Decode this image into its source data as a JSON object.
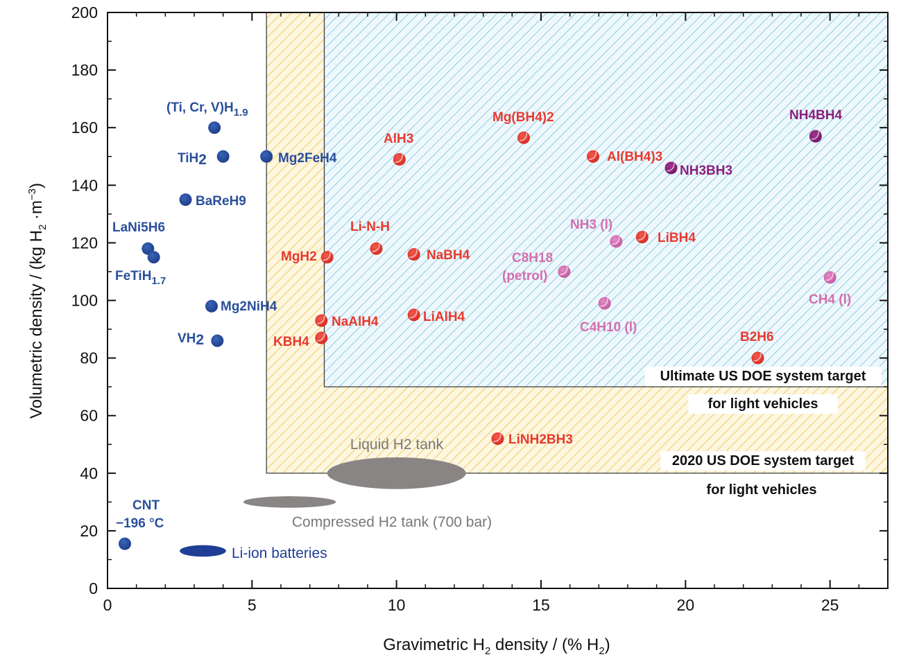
{
  "chart_data": {
    "type": "scatter",
    "xlabel": "Gravimetric H2 density / (% H2)",
    "ylabel": "Volumetric density / (kg H2·m−3)",
    "xlim": [
      0,
      27
    ],
    "ylim": [
      0,
      200
    ],
    "xticks": [
      "0",
      "5",
      "10",
      "15",
      "20",
      "25"
    ],
    "yticks": [
      "0",
      "20",
      "40",
      "60",
      "80",
      "100",
      "120",
      "140",
      "160",
      "180",
      "200"
    ],
    "colors": {
      "metal_hydride": "#2a4f9b",
      "complex_hydride": "#e83a2f",
      "hydrocarbon": "#d36fb0",
      "ammonia_borane": "#8b1f7e",
      "ellipse_gray": "#8a8585",
      "ellipse_blue": "#1f3f96",
      "hatch_blue": "#8ccbe4",
      "hatch_yellow": "#f3cf6a"
    },
    "regions": [
      {
        "label_line1": "2020 US DOE system target",
        "label_line2": "for light vehicles",
        "x_min": 5.5,
        "y_min": 40
      },
      {
        "label_line1": "Ultimate US DOE system target",
        "label_line2": "for light vehicles",
        "x_min": 7.5,
        "y_min": 70
      }
    ],
    "points": [
      {
        "label": "(Ti, Cr, V)H",
        "sub": "1.9",
        "x": 3.7,
        "y": 160,
        "group": "metal_hydride"
      },
      {
        "label": "TiH",
        "sub": "2",
        "x": 4.0,
        "y": 150,
        "group": "metal_hydride"
      },
      {
        "label": "Mg2FeH4",
        "x": 5.5,
        "y": 150,
        "group": "metal_hydride"
      },
      {
        "label": "BaReH9",
        "x": 2.7,
        "y": 135,
        "group": "metal_hydride"
      },
      {
        "label": "LaNi5H6",
        "x": 1.4,
        "y": 118,
        "group": "metal_hydride"
      },
      {
        "label": "FeTiH",
        "sub": "1.7",
        "x": 1.6,
        "y": 115,
        "group": "metal_hydride"
      },
      {
        "label": "Mg2NiH4",
        "x": 3.6,
        "y": 98,
        "group": "metal_hydride"
      },
      {
        "label": "VH",
        "sub": "2",
        "x": 3.8,
        "y": 86,
        "group": "metal_hydride"
      },
      {
        "label": "CNT",
        "label2": "−196 °C",
        "x": 0.6,
        "y": 15.5,
        "group": "metal_hydride"
      },
      {
        "label": "Mg(BH4)2",
        "x": 14.4,
        "y": 156.5,
        "group": "complex_hydride"
      },
      {
        "label": "AlH3",
        "x": 10.1,
        "y": 149,
        "group": "complex_hydride"
      },
      {
        "label": "Al(BH4)3",
        "x": 16.8,
        "y": 150,
        "group": "complex_hydride"
      },
      {
        "label": "Li-N-H",
        "x": 9.3,
        "y": 118,
        "group": "complex_hydride"
      },
      {
        "label": "MgH2",
        "x": 7.6,
        "y": 115,
        "group": "complex_hydride"
      },
      {
        "label": "NaBH4",
        "x": 10.6,
        "y": 116,
        "group": "complex_hydride"
      },
      {
        "label": "LiBH4",
        "x": 18.5,
        "y": 122,
        "group": "complex_hydride"
      },
      {
        "label": "NaAlH4",
        "x": 7.4,
        "y": 93,
        "group": "complex_hydride"
      },
      {
        "label": "LiAlH4",
        "x": 10.6,
        "y": 95,
        "group": "complex_hydride"
      },
      {
        "label": "KBH4",
        "x": 7.4,
        "y": 87,
        "group": "complex_hydride"
      },
      {
        "label": "B2H6",
        "x": 22.5,
        "y": 80,
        "group": "complex_hydride"
      },
      {
        "label": "LiNH2BH3",
        "x": 13.5,
        "y": 52,
        "group": "complex_hydride"
      },
      {
        "label": "NH3 (l)",
        "x": 17.6,
        "y": 120.5,
        "group": "hydrocarbon"
      },
      {
        "label": "C8H18",
        "label2": "(petrol)",
        "x": 15.8,
        "y": 110,
        "group": "hydrocarbon"
      },
      {
        "label": "C4H10 (l)",
        "x": 17.2,
        "y": 99,
        "group": "hydrocarbon"
      },
      {
        "label": "CH4 (l)",
        "x": 25.0,
        "y": 108,
        "group": "hydrocarbon"
      },
      {
        "label": "NH4BH4",
        "x": 24.5,
        "y": 157,
        "group": "ammonia_borane"
      },
      {
        "label": "NH3BH3",
        "x": 19.5,
        "y": 146,
        "group": "ammonia_borane"
      }
    ],
    "ellipses": [
      {
        "label": "Liquid H2 tank",
        "cx": 10.0,
        "cy": 40,
        "rx": 2.4,
        "ry": 5.5,
        "group": "ellipse_gray"
      },
      {
        "label": "Compressed H2 tank (700 bar)",
        "cx": 6.3,
        "cy": 30,
        "rx": 1.6,
        "ry": 2.0,
        "group": "ellipse_gray"
      },
      {
        "label": "Li-ion batteries",
        "cx": 3.3,
        "cy": 13,
        "rx": 0.8,
        "ry": 2.0,
        "group": "ellipse_blue"
      }
    ]
  }
}
